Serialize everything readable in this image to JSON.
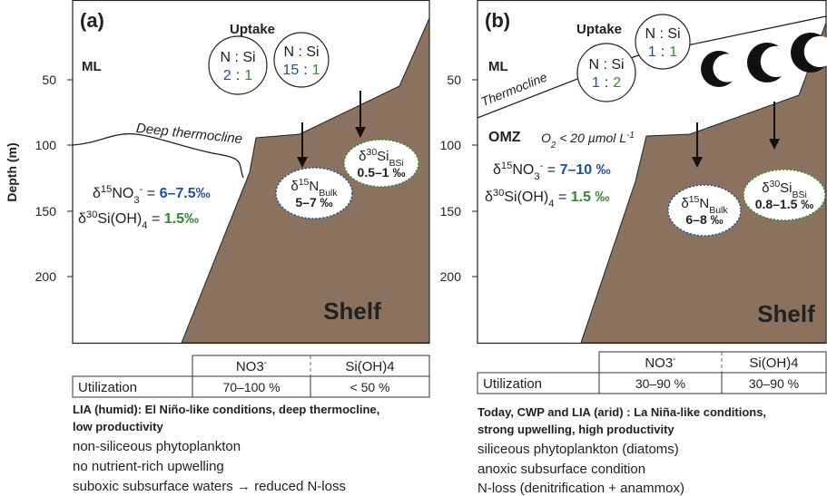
{
  "y_axis": {
    "label": "Depth (m)",
    "ticks": [
      "50",
      "100",
      "150",
      "200"
    ]
  },
  "panels": [
    {
      "label": "(a)",
      "uptake": "Uptake",
      "ml": "ML",
      "ratios": [
        {
          "label": "N : Si",
          "n": "2",
          "colon": ":",
          "si": "1"
        },
        {
          "label": "N : Si",
          "n": "15",
          "colon": ":",
          "si": "1"
        }
      ],
      "thermocline": "Deep thermocline",
      "nitrate": [
        {
          "text": "δ"
        },
        {
          "text": "15",
          "shift": "super"
        },
        {
          "text": "NO"
        },
        {
          "text": "3",
          "shift": "sub"
        },
        {
          "text": "-",
          "shift": "super"
        },
        {
          "text": " = "
        },
        {
          "text": "6–7.5‰",
          "strong": true,
          "color": "#1f4e9c"
        }
      ],
      "silicate": [
        {
          "text": "δ"
        },
        {
          "text": "30",
          "shift": "super"
        },
        {
          "text": "Si(OH)"
        },
        {
          "text": "4",
          "shift": "sub"
        },
        {
          "text": " = "
        },
        {
          "text": "1.5‰",
          "strong": true,
          "color": "#2e8b2e"
        }
      ],
      "bulk_n": {
        "name": [
          {
            "text": "δ"
          },
          {
            "text": "15",
            "shift": "super"
          },
          {
            "text": "N"
          },
          {
            "text": "Bulk",
            "shift": "sub"
          }
        ],
        "value": "5–7 ‰"
      },
      "bsi": {
        "name": [
          {
            "text": "δ"
          },
          {
            "text": "30",
            "shift": "super"
          },
          {
            "text": "Si"
          },
          {
            "text": "BSi",
            "shift": "sub"
          }
        ],
        "value": "0.5–1 ‰"
      },
      "shelf": "Shelf",
      "table": {
        "headers": [
          [
            {
              "text": "NO"
            },
            {
              "text": "3"
            },
            {
              "text": "-",
              "shift": "super"
            }
          ],
          [
            {
              "text": "Si(OH)"
            },
            {
              "text": "4"
            }
          ]
        ],
        "row_label": "Utilization",
        "values": [
          "70–100 %",
          "< 50 %"
        ]
      },
      "caption": {
        "bold": [
          "LIA (humid): El Niño-like conditions, deep thermocline,",
          "low productivity"
        ],
        "lines": [
          "non-siliceous phytoplankton",
          "no nutrient-rich upwelling",
          "suboxic subsurface waters → reduced N-loss"
        ]
      }
    },
    {
      "label": "(b)",
      "uptake": "Uptake",
      "ml": "ML",
      "ratios": [
        {
          "label": "N : Si",
          "n": "1",
          "colon": ":",
          "si": "2"
        },
        {
          "label": "N : Si",
          "n": "1",
          "colon": ":",
          "si": "1"
        }
      ],
      "thermocline": "Thermocline",
      "omz": "OMZ",
      "oxygen": [
        {
          "text": "O"
        },
        {
          "text": "2",
          "shift": "sub"
        },
        {
          "text": " < 20 µmol L"
        },
        {
          "text": "-1",
          "shift": "super"
        }
      ],
      "nitrate": [
        {
          "text": "δ"
        },
        {
          "text": "15",
          "shift": "super"
        },
        {
          "text": "NO"
        },
        {
          "text": "3",
          "shift": "sub"
        },
        {
          "text": "-",
          "shift": "super"
        },
        {
          "text": " = "
        },
        {
          "text": "7–10 ‰",
          "strong": true,
          "color": "#1f4e9c"
        }
      ],
      "silicate": [
        {
          "text": "δ"
        },
        {
          "text": "30",
          "shift": "super"
        },
        {
          "text": "Si(OH)"
        },
        {
          "text": "4",
          "shift": "sub"
        },
        {
          "text": " = "
        },
        {
          "text": "1.5 ‰",
          "strong": true,
          "color": "#2e8b2e"
        }
      ],
      "bulk_n": {
        "name": [
          {
            "text": "δ"
          },
          {
            "text": "15",
            "shift": "super"
          },
          {
            "text": "N"
          },
          {
            "text": "Bulk",
            "shift": "sub"
          }
        ],
        "value": "6–8 ‰"
      },
      "bsi": {
        "name": [
          {
            "text": "δ"
          },
          {
            "text": "30",
            "shift": "super"
          },
          {
            "text": "Si"
          },
          {
            "text": "BSi",
            "shift": "sub"
          }
        ],
        "value": "0.8–1.5 ‰"
      },
      "shelf": "Shelf",
      "table": {
        "headers": [
          [
            {
              "text": "NO"
            },
            {
              "text": "3"
            },
            {
              "text": "-",
              "shift": "super"
            }
          ],
          [
            {
              "text": "Si(OH)"
            },
            {
              "text": "4"
            }
          ]
        ],
        "row_label": "Utilization",
        "values": [
          "30–90 %",
          "30–90 %"
        ]
      },
      "caption": {
        "bold": [
          "Today, CWP and LIA (arid) :  La Niña-like conditions,",
          "strong upwelling, high productivity"
        ],
        "lines": [
          "siliceous phytoplankton (diatoms)",
          "anoxic subsurface condition",
          "N-loss (denitrification + anammox)"
        ]
      }
    }
  ]
}
